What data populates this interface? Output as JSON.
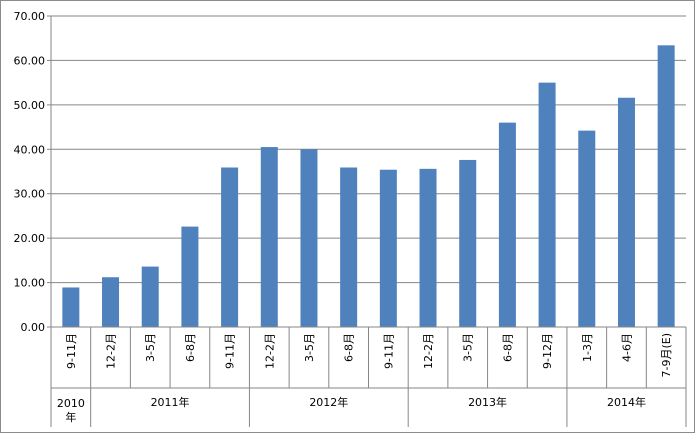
{
  "chart_data": {
    "type": "bar",
    "title": "",
    "xlabel": "",
    "ylabel": "",
    "ylim": [
      0,
      70
    ],
    "yticks": [
      "0.00",
      "10.00",
      "20.00",
      "30.00",
      "40.00",
      "50.00",
      "60.00",
      "70.00"
    ],
    "grid": true,
    "legend": "none",
    "bar_color": "#4f81bd",
    "categories": [
      "9-11月",
      "12-2月",
      "3-5月",
      "6-8月",
      "9-11月",
      "12-2月",
      "3-5月",
      "6-8月",
      "9-11月",
      "12-2月",
      "3-5月",
      "6-8月",
      "9-12月",
      "1-3月",
      "4-6月",
      "7-9月(E)"
    ],
    "values": [
      8.9,
      11.2,
      13.6,
      22.6,
      35.9,
      40.5,
      40.0,
      35.9,
      35.4,
      35.6,
      37.6,
      46.0,
      55.0,
      44.2,
      51.6,
      63.4
    ],
    "groups": [
      {
        "label": "2010年",
        "count": 1
      },
      {
        "label": "2011年",
        "count": 4
      },
      {
        "label": "2012年",
        "count": 4
      },
      {
        "label": "2013年",
        "count": 4
      },
      {
        "label": "2014年",
        "count": 3
      }
    ]
  }
}
